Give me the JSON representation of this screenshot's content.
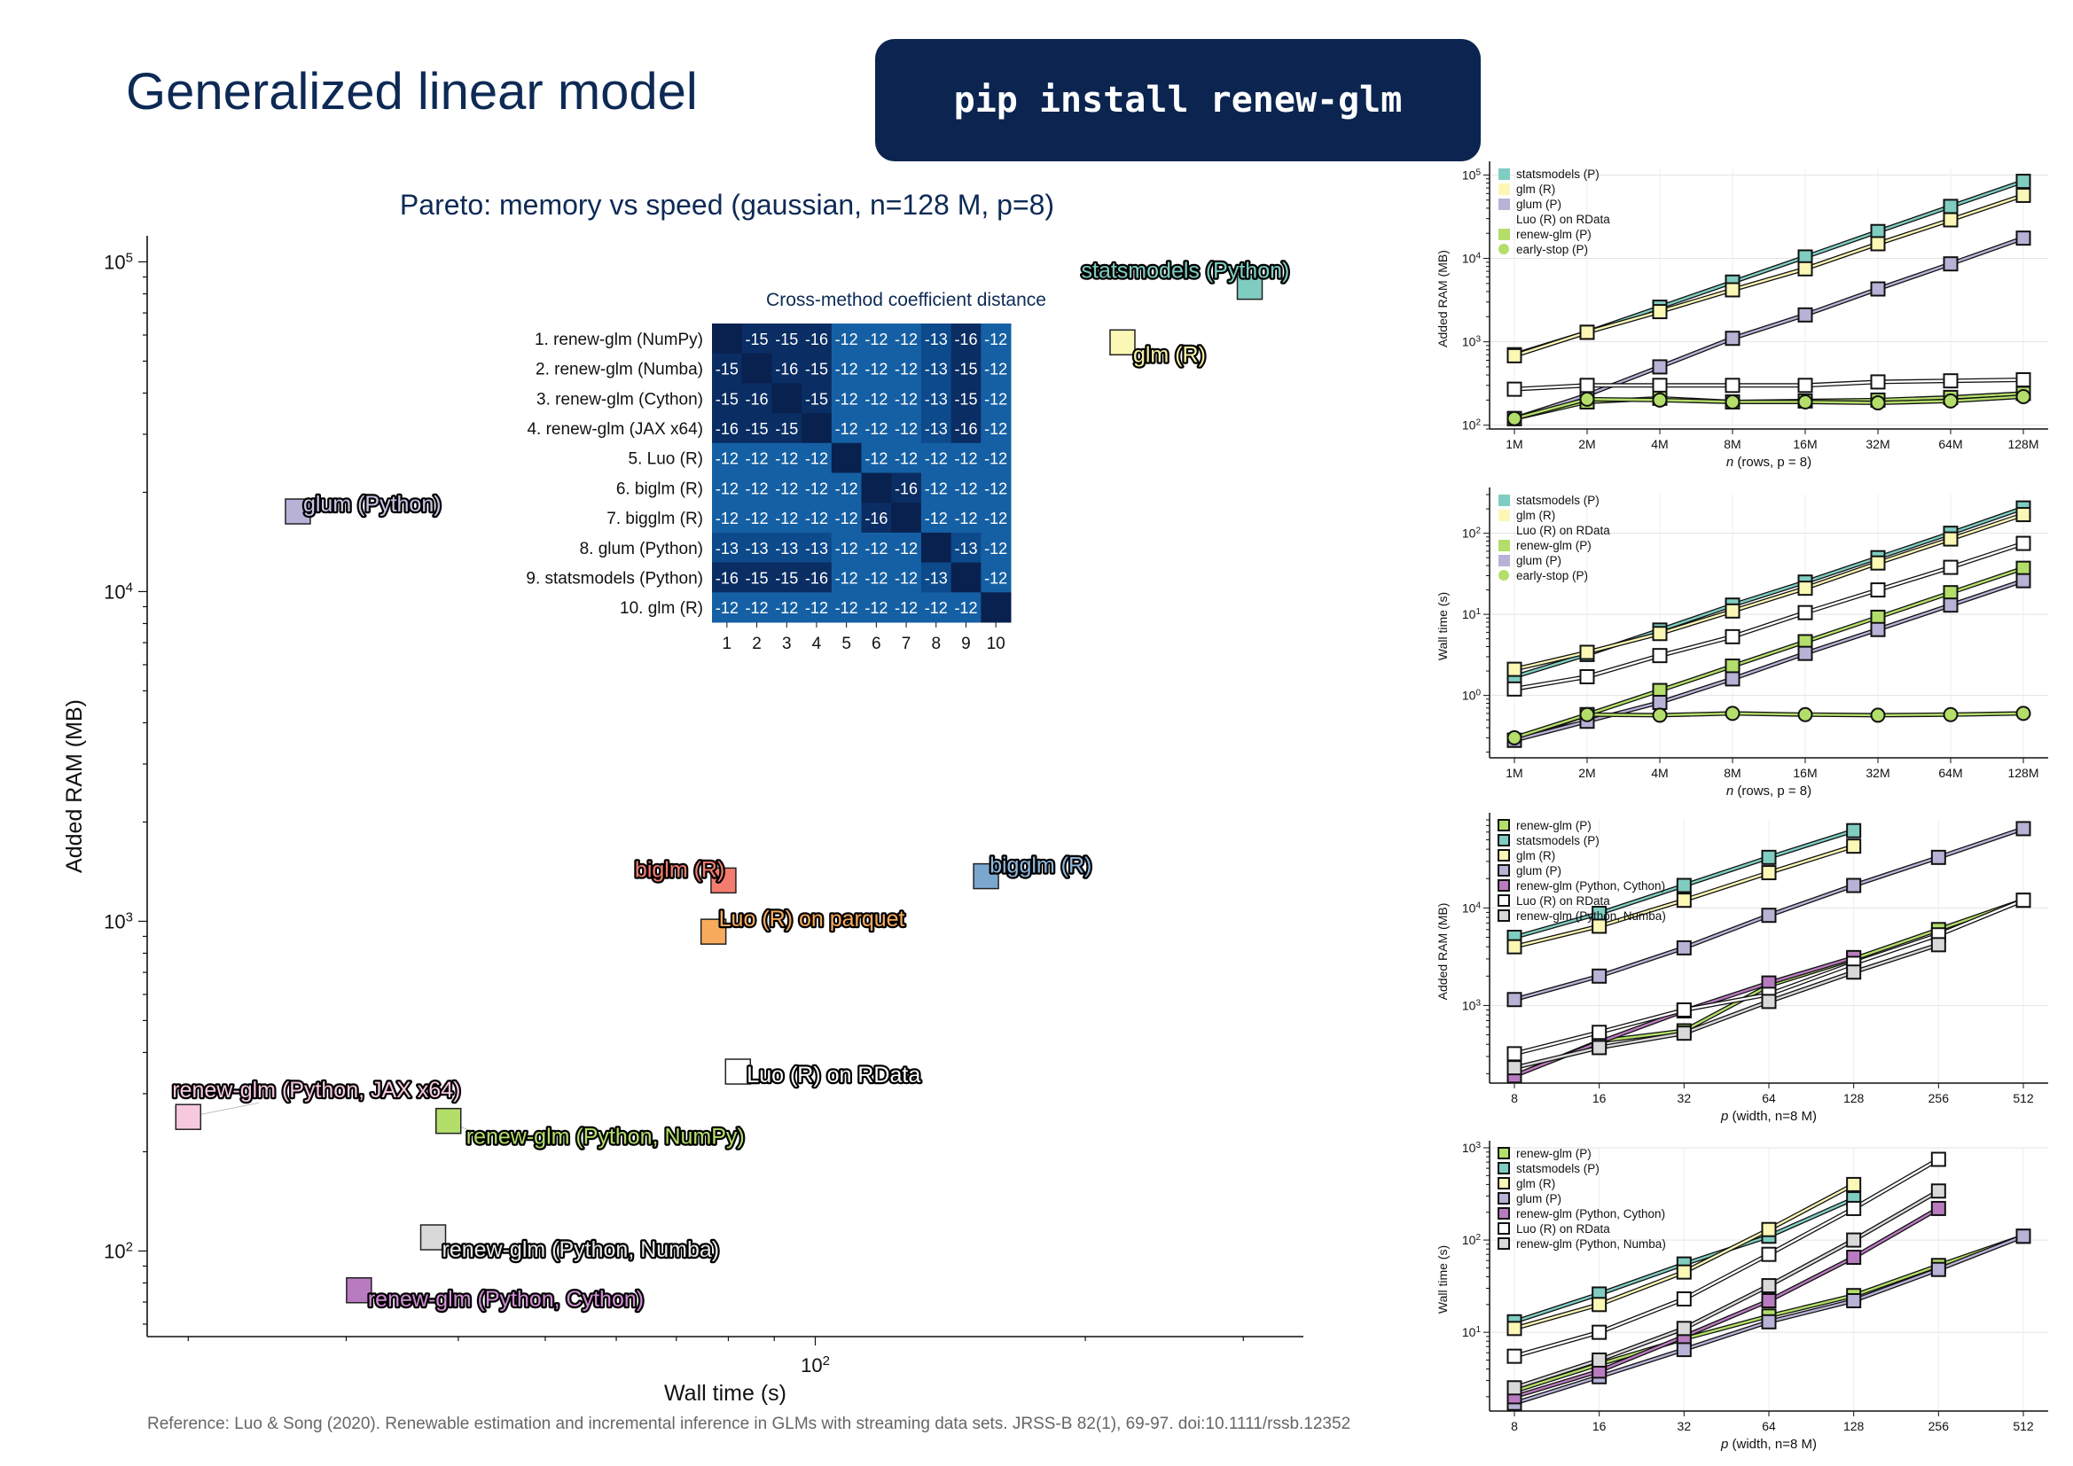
{
  "page": {
    "title": "Generalized linear model",
    "install_command": "pip install renew-glm",
    "reference": "Reference: Luo & Song (2020). Renewable estimation and incremental inference in GLMs with streaming data sets. JRSS-B 82(1), 69-97. doi:10.1111/rssb.12352"
  },
  "chart_data": [
    {
      "id": "pareto",
      "type": "scatter",
      "title": "Pareto: memory vs speed  (gaussian, n=128 M, p=8)",
      "xlabel": "Wall time (s)",
      "ylabel": "Added RAM (MB)",
      "xscale": "log",
      "yscale": "log",
      "xlim": [
        18,
        350
      ],
      "ylim": [
        55,
        120000
      ],
      "xticks": [
        {
          "value": 100,
          "label": "10^2"
        }
      ],
      "yticks": [
        {
          "value": 100,
          "label": "10^2"
        },
        {
          "value": 1000,
          "label": "10^3"
        },
        {
          "value": 10000,
          "label": "10^4"
        },
        {
          "value": 100000,
          "label": "10^5"
        }
      ],
      "points": [
        {
          "label": "statsmodels (Python)",
          "x": 305,
          "y": 84000,
          "color": "#7fcdc1",
          "text_color": "#7fcdc1"
        },
        {
          "label": "glm (R)",
          "x": 220,
          "y": 57000,
          "color": "#fbf7b5",
          "text_color": "#f7f2a8"
        },
        {
          "label": "glum (Python)",
          "x": 26.5,
          "y": 17500,
          "color": "#b7b2d6",
          "text_color": "#c9c5e6"
        },
        {
          "label": "biglm (R)",
          "x": 79,
          "y": 1330,
          "color": "#f47c6f",
          "text_color": "#f47c6f"
        },
        {
          "label": "bigglm (R)",
          "x": 155,
          "y": 1370,
          "color": "#7ba7cf",
          "text_color": "#8fb6da"
        },
        {
          "label": "Luo (R) on parquet",
          "x": 77,
          "y": 930,
          "color": "#f9ab5d",
          "text_color": "#f9ab5d"
        },
        {
          "label": "Luo (R) on RData",
          "x": 82,
          "y": 350,
          "color": "#ffffff",
          "text_color": "#ffffff"
        },
        {
          "label": "renew-glm (Python, JAX x64)",
          "x": 20,
          "y": 255,
          "color": "#f7c9df",
          "text_color": "#f7c9df"
        },
        {
          "label": "renew-glm (Python, NumPy)",
          "x": 39,
          "y": 248,
          "color": "#b3de69",
          "text_color": "#b3de69"
        },
        {
          "label": "renew-glm (Python, Numba)",
          "x": 37.5,
          "y": 110,
          "color": "#d9d9d9",
          "text_color": "#e8e8e8"
        },
        {
          "label": "renew-glm (Python, Cython)",
          "x": 31,
          "y": 76,
          "color": "#b97bbf",
          "text_color": "#cf8fd3"
        }
      ]
    },
    {
      "id": "coef_distance",
      "type": "heatmap",
      "title": "Cross-method coefficient distance",
      "row_labels": [
        "1. renew-glm (NumPy)",
        "2. renew-glm (Numba)",
        "3. renew-glm (Cython)",
        "4. renew-glm (JAX x64)",
        "5. Luo (R)",
        "6. biglm (R)",
        "7. bigglm (R)",
        "8. glum (Python)",
        "9. statsmodels (Python)",
        "10. glm (R)"
      ],
      "col_labels": [
        "1",
        "2",
        "3",
        "4",
        "5",
        "6",
        "7",
        "8",
        "9",
        "10"
      ],
      "values": [
        [
          null,
          -15,
          -15,
          -16,
          -12,
          -12,
          -12,
          -13,
          -16,
          -12
        ],
        [
          -15,
          null,
          -16,
          -15,
          -12,
          -12,
          -12,
          -13,
          -15,
          -12
        ],
        [
          -15,
          -16,
          null,
          -15,
          -12,
          -12,
          -12,
          -13,
          -15,
          -12
        ],
        [
          -16,
          -15,
          -15,
          null,
          -12,
          -12,
          -12,
          -13,
          -16,
          -12
        ],
        [
          -12,
          -12,
          -12,
          -12,
          null,
          -12,
          -12,
          -12,
          -12,
          -12
        ],
        [
          -12,
          -12,
          -12,
          -12,
          -12,
          null,
          -16,
          -12,
          -12,
          -12
        ],
        [
          -12,
          -12,
          -12,
          -12,
          -12,
          -16,
          null,
          -12,
          -12,
          -12
        ],
        [
          -13,
          -13,
          -13,
          -13,
          -12,
          -12,
          -12,
          null,
          -13,
          -12
        ],
        [
          -16,
          -15,
          -15,
          -16,
          -12,
          -12,
          -12,
          -13,
          null,
          -12
        ],
        [
          -12,
          -12,
          -12,
          -12,
          -12,
          -12,
          -12,
          -12,
          -12,
          null
        ]
      ]
    },
    {
      "id": "ram_vs_n",
      "type": "line",
      "xlabel": "n (rows, p = 8)",
      "ylabel": "Added RAM (MB)",
      "yscale": "log",
      "ylim": [
        90,
        120000
      ],
      "x": [
        "1M",
        "2M",
        "4M",
        "8M",
        "16M",
        "32M",
        "64M",
        "128M"
      ],
      "yticks": [
        {
          "value": 100,
          "label": "10^2"
        },
        {
          "value": 1000,
          "label": "10^3"
        },
        {
          "value": 10000,
          "label": "10^4"
        },
        {
          "value": 100000,
          "label": "10^5"
        }
      ],
      "series": [
        {
          "name": "statsmodels (P)",
          "marker": "square",
          "color": "#7fcdc1",
          "values": [
            700,
            1300,
            2600,
            5200,
            10400,
            21000,
            42000,
            84000
          ]
        },
        {
          "name": "glm (R)",
          "marker": "square",
          "color": "#fbf7b5",
          "values": [
            680,
            1300,
            2300,
            4200,
            7500,
            15000,
            29000,
            57000
          ]
        },
        {
          "name": "glum (P)",
          "marker": "square",
          "color": "#b7b2d6",
          "values": [
            120,
            230,
            500,
            1100,
            2100,
            4300,
            8600,
            17500
          ]
        },
        {
          "name": "Luo (R) on RData",
          "marker": "square",
          "color": "#ffffff",
          "values": [
            270,
            300,
            300,
            300,
            300,
            330,
            340,
            350
          ]
        },
        {
          "name": "renew-glm (P)",
          "marker": "square",
          "color": "#b3de69",
          "values": [
            120,
            190,
            210,
            190,
            195,
            200,
            215,
            240
          ]
        },
        {
          "name": "early-stop (P)",
          "marker": "circle",
          "color": "#b3de69",
          "values": [
            120,
            205,
            200,
            190,
            190,
            185,
            195,
            220
          ]
        }
      ]
    },
    {
      "id": "time_vs_n",
      "type": "line",
      "xlabel": "n (rows, p = 8)",
      "ylabel": "Wall time (s)",
      "yscale": "log",
      "ylim": [
        0.17,
        300
      ],
      "x": [
        "1M",
        "2M",
        "4M",
        "8M",
        "16M",
        "32M",
        "64M",
        "128M"
      ],
      "yticks": [
        {
          "value": 1,
          "label": "10^0"
        },
        {
          "value": 10,
          "label": "10^1"
        },
        {
          "value": 100,
          "label": "10^2"
        }
      ],
      "series": [
        {
          "name": "statsmodels (P)",
          "marker": "square",
          "color": "#7fcdc1",
          "values": [
            1.7,
            3.2,
            6.4,
            13,
            25,
            50,
            100,
            205
          ]
        },
        {
          "name": "glm (R)",
          "marker": "square",
          "color": "#fbf7b5",
          "values": [
            2.1,
            3.4,
            5.8,
            11,
            21,
            43,
            85,
            170
          ]
        },
        {
          "name": "Luo (R) on RData",
          "marker": "square",
          "color": "#ffffff",
          "values": [
            1.2,
            1.7,
            3.1,
            5.3,
            10.5,
            20,
            38,
            75
          ]
        },
        {
          "name": "renew-glm (P)",
          "marker": "square",
          "color": "#b3de69",
          "values": [
            0.28,
            0.58,
            1.15,
            2.3,
            4.6,
            9.2,
            18.5,
            37
          ]
        },
        {
          "name": "glum (P)",
          "marker": "square",
          "color": "#b7b2d6",
          "values": [
            0.28,
            0.48,
            0.82,
            1.6,
            3.3,
            6.5,
            13,
            26
          ]
        },
        {
          "name": "early-stop (P)",
          "marker": "circle",
          "color": "#b3de69",
          "values": [
            0.3,
            0.58,
            0.57,
            0.6,
            0.58,
            0.57,
            0.58,
            0.6
          ]
        }
      ]
    },
    {
      "id": "ram_vs_p",
      "type": "line",
      "xlabel": "p (width, n=8 M)",
      "ylabel": "Added RAM (MB)",
      "yscale": "log",
      "ylim": [
        160,
        80000
      ],
      "x": [
        "8",
        "16",
        "32",
        "64",
        "128",
        "256",
        "512"
      ],
      "yticks": [
        {
          "value": 1000,
          "label": "10^3"
        },
        {
          "value": 10000,
          "label": "10^4"
        }
      ],
      "series": [
        {
          "name": "renew-glm (P)",
          "marker": "square",
          "color": "#b3de69",
          "values": [
            190,
            430,
            550,
            1600,
            3000,
            6000,
            12000
          ]
        },
        {
          "name": "statsmodels (P)",
          "marker": "square",
          "color": "#7fcdc1",
          "values": [
            5000,
            8800,
            17000,
            33000,
            62000,
            null,
            null
          ]
        },
        {
          "name": "glm (R)",
          "marker": "square",
          "color": "#fbf7b5",
          "values": [
            4000,
            6500,
            12000,
            23000,
            43000,
            null,
            null
          ]
        },
        {
          "name": "glum (P)",
          "marker": "square",
          "color": "#b7b2d6",
          "values": [
            1150,
            2000,
            3900,
            8400,
            17000,
            33000,
            65000
          ]
        },
        {
          "name": "renew-glm (Python, Cython)",
          "marker": "square",
          "color": "#b97bbf",
          "values": [
            190,
            420,
            880,
            1700,
            3100,
            null,
            null
          ]
        },
        {
          "name": "Luo (R) on RData",
          "marker": "square",
          "color": "#ffffff",
          "values": [
            320,
            530,
            900,
            1300,
            2700,
            5300,
            12000
          ]
        },
        {
          "name": "renew-glm (Python, Numba)",
          "marker": "square",
          "color": "#d9d9d9",
          "values": [
            230,
            370,
            520,
            1100,
            2200,
            4200,
            null
          ]
        }
      ]
    },
    {
      "id": "time_vs_p",
      "type": "line",
      "xlabel": "p (width, n=8 M)",
      "ylabel": "Wall time (s)",
      "yscale": "log",
      "ylim": [
        1.4,
        1000
      ],
      "x": [
        "8",
        "16",
        "32",
        "64",
        "128",
        "256",
        "512"
      ],
      "yticks": [
        {
          "value": 10,
          "label": "10^1"
        },
        {
          "value": 100,
          "label": "10^2"
        },
        {
          "value": 1000,
          "label": "10^3"
        }
      ],
      "series": [
        {
          "name": "renew-glm (P)",
          "marker": "square",
          "color": "#b3de69",
          "values": [
            2.3,
            4.5,
            8.5,
            15,
            25,
            53,
            110
          ]
        },
        {
          "name": "statsmodels (P)",
          "marker": "square",
          "color": "#7fcdc1",
          "values": [
            13,
            26,
            55,
            110,
            280,
            null,
            null
          ]
        },
        {
          "name": "glm (R)",
          "marker": "square",
          "color": "#fbf7b5",
          "values": [
            11,
            20,
            45,
            130,
            400,
            null,
            null
          ]
        },
        {
          "name": "glum (P)",
          "marker": "square",
          "color": "#b7b2d6",
          "values": [
            1.7,
            3.3,
            6.5,
            13,
            22,
            48,
            110
          ]
        },
        {
          "name": "renew-glm (Python, Cython)",
          "marker": "square",
          "color": "#b97bbf",
          "values": [
            2,
            3.8,
            9,
            22,
            65,
            220,
            null
          ]
        },
        {
          "name": "Luo (R) on RData",
          "marker": "square",
          "color": "#ffffff",
          "values": [
            5.5,
            10,
            23,
            70,
            220,
            750,
            null
          ]
        },
        {
          "name": "renew-glm (Python, Numba)",
          "marker": "square",
          "color": "#d9d9d9",
          "values": [
            2.5,
            5,
            11,
            32,
            100,
            340,
            null
          ]
        }
      ]
    }
  ]
}
